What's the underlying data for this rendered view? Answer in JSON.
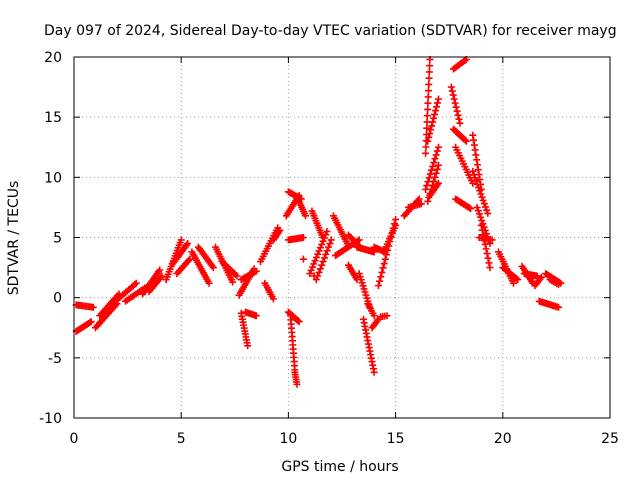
{
  "chart_data": {
    "type": "scatter",
    "title": "Day 097 of 2024, Sidereal Day-to-day VTEC variation (SDTVAR) for receiver mayg",
    "xlabel": "GPS time / hours",
    "ylabel": "SDTVAR / TECUs",
    "xlim": [
      0,
      25
    ],
    "ylim": [
      -10,
      20
    ],
    "xticks": [
      0,
      5,
      10,
      15,
      20,
      25
    ],
    "yticks": [
      -10,
      -5,
      0,
      5,
      10,
      15,
      20
    ],
    "grid": true,
    "marker": "+",
    "color": "#ff0000",
    "series": [
      {
        "name": "SDTVAR",
        "arcs": [
          {
            "t0": 0.1,
            "v0": -0.6,
            "t1": 0.9,
            "v1": -0.8,
            "n": 12
          },
          {
            "t0": 0.1,
            "v0": -2.8,
            "t1": 0.8,
            "v1": -2.0,
            "n": 12
          },
          {
            "t0": 1.0,
            "v0": -2.5,
            "t1": 2.0,
            "v1": -0.5,
            "n": 16
          },
          {
            "t0": 1.2,
            "v0": -1.5,
            "t1": 2.1,
            "v1": 0.3,
            "n": 14
          },
          {
            "t0": 2.0,
            "v0": -0.2,
            "t1": 2.9,
            "v1": 1.2,
            "n": 14
          },
          {
            "t0": 2.4,
            "v0": -0.3,
            "t1": 3.3,
            "v1": 0.8,
            "n": 12
          },
          {
            "t0": 3.2,
            "v0": 0.3,
            "t1": 4.0,
            "v1": 2.3,
            "n": 14
          },
          {
            "t0": 3.5,
            "v0": 0.5,
            "t1": 4.1,
            "v1": 1.8,
            "n": 10
          },
          {
            "t0": 4.3,
            "v0": 1.5,
            "t1": 5.0,
            "v1": 4.8,
            "n": 16
          },
          {
            "t0": 4.6,
            "v0": 2.8,
            "t1": 5.3,
            "v1": 4.5,
            "n": 14
          },
          {
            "t0": 4.8,
            "v0": 2.0,
            "t1": 5.4,
            "v1": 3.2,
            "n": 10
          },
          {
            "t0": 5.5,
            "v0": 3.8,
            "t1": 6.3,
            "v1": 1.2,
            "n": 16
          },
          {
            "t0": 5.8,
            "v0": 4.2,
            "t1": 6.5,
            "v1": 2.5,
            "n": 14
          },
          {
            "t0": 6.6,
            "v0": 4.2,
            "t1": 7.4,
            "v1": 1.3,
            "n": 16
          },
          {
            "t0": 6.9,
            "v0": 3.0,
            "t1": 7.6,
            "v1": 1.8,
            "n": 10
          },
          {
            "t0": 7.7,
            "v0": 0.2,
            "t1": 8.4,
            "v1": 2.4,
            "n": 14
          },
          {
            "t0": 7.8,
            "v0": 1.5,
            "t1": 8.5,
            "v1": 2.2,
            "n": 10
          },
          {
            "t0": 7.8,
            "v0": -1.3,
            "t1": 8.1,
            "v1": -4.0,
            "n": 12
          },
          {
            "t0": 8.0,
            "v0": -1.2,
            "t1": 8.5,
            "v1": -1.5,
            "n": 8
          },
          {
            "t0": 8.7,
            "v0": 3.0,
            "t1": 9.5,
            "v1": 5.8,
            "n": 14
          },
          {
            "t0": 8.9,
            "v0": 1.2,
            "t1": 9.3,
            "v1": -0.1,
            "n": 8
          },
          {
            "t0": 9.3,
            "v0": 4.8,
            "t1": 9.6,
            "v1": 5.6,
            "n": 8
          },
          {
            "t0": 9.9,
            "v0": 6.8,
            "t1": 10.5,
            "v1": 8.5,
            "n": 12
          },
          {
            "t0": 10.0,
            "v0": 8.8,
            "t1": 10.6,
            "v1": 8.2,
            "n": 10
          },
          {
            "t0": 10.4,
            "v0": 8.4,
            "t1": 10.8,
            "v1": 6.8,
            "n": 10
          },
          {
            "t0": 10.0,
            "v0": 4.8,
            "t1": 10.7,
            "v1": 5.0,
            "n": 12
          },
          {
            "t0": 10.0,
            "v0": -1.2,
            "t1": 10.5,
            "v1": -2.0,
            "n": 10
          },
          {
            "t0": 10.1,
            "v0": -1.5,
            "t1": 10.3,
            "v1": -6.0,
            "n": 14
          },
          {
            "t0": 10.3,
            "v0": -6.2,
            "t1": 10.4,
            "v1": -7.2,
            "n": 6
          },
          {
            "t0": 10.7,
            "v0": 3.2,
            "t1": 10.7,
            "v1": 3.2,
            "n": 1
          },
          {
            "t0": 11.1,
            "v0": 7.2,
            "t1": 11.6,
            "v1": 5.0,
            "n": 12
          },
          {
            "t0": 11.0,
            "v0": 2.0,
            "t1": 11.8,
            "v1": 5.5,
            "n": 14
          },
          {
            "t0": 11.3,
            "v0": 1.5,
            "t1": 12.0,
            "v1": 4.8,
            "n": 12
          },
          {
            "t0": 11.2,
            "v0": 1.8,
            "t1": 11.2,
            "v1": 1.8,
            "n": 1
          },
          {
            "t0": 12.1,
            "v0": 6.8,
            "t1": 12.8,
            "v1": 4.3,
            "n": 14
          },
          {
            "t0": 12.2,
            "v0": 3.5,
            "t1": 13.3,
            "v1": 4.8,
            "n": 16
          },
          {
            "t0": 12.8,
            "v0": 5.2,
            "t1": 13.3,
            "v1": 4.3,
            "n": 8
          },
          {
            "t0": 12.8,
            "v0": 2.7,
            "t1": 13.2,
            "v1": 1.5,
            "n": 8
          },
          {
            "t0": 13.2,
            "v0": 4.2,
            "t1": 14.0,
            "v1": 3.8,
            "n": 14
          },
          {
            "t0": 13.3,
            "v0": 2.0,
            "t1": 13.8,
            "v1": -0.8,
            "n": 12
          },
          {
            "t0": 13.5,
            "v0": -1.8,
            "t1": 14.0,
            "v1": -6.2,
            "n": 16
          },
          {
            "t0": 13.9,
            "v0": -2.5,
            "t1": 14.2,
            "v1": -1.8,
            "n": 6
          },
          {
            "t0": 13.7,
            "v0": -0.5,
            "t1": 14.0,
            "v1": -1.5,
            "n": 6
          },
          {
            "t0": 14.3,
            "v0": -1.6,
            "t1": 14.6,
            "v1": -1.5,
            "n": 4
          },
          {
            "t0": 14.0,
            "v0": 4.2,
            "t1": 14.5,
            "v1": 3.8,
            "n": 8
          },
          {
            "t0": 14.2,
            "v0": 1.0,
            "t1": 15.0,
            "v1": 6.5,
            "n": 16
          },
          {
            "t0": 14.5,
            "v0": 4.0,
            "t1": 15.0,
            "v1": 6.0,
            "n": 10
          },
          {
            "t0": 15.4,
            "v0": 6.8,
            "t1": 16.1,
            "v1": 8.2,
            "n": 12
          },
          {
            "t0": 15.6,
            "v0": 7.5,
            "t1": 16.2,
            "v1": 7.8,
            "n": 8
          },
          {
            "t0": 16.4,
            "v0": 12.0,
            "t1": 16.6,
            "v1": 19.8,
            "n": 16
          },
          {
            "t0": 16.5,
            "v0": 13.0,
            "t1": 17.0,
            "v1": 16.5,
            "n": 12
          },
          {
            "t0": 16.4,
            "v0": 9.0,
            "t1": 17.0,
            "v1": 12.5,
            "n": 12
          },
          {
            "t0": 16.5,
            "v0": 8.0,
            "t1": 17.0,
            "v1": 11.0,
            "n": 10
          },
          {
            "t0": 16.6,
            "v0": 8.5,
            "t1": 17.0,
            "v1": 9.5,
            "n": 8
          },
          {
            "t0": 17.7,
            "v0": 19.0,
            "t1": 18.3,
            "v1": 19.8,
            "n": 10
          },
          {
            "t0": 17.6,
            "v0": 17.5,
            "t1": 18.0,
            "v1": 14.5,
            "n": 10
          },
          {
            "t0": 17.7,
            "v0": 14.0,
            "t1": 18.3,
            "v1": 13.0,
            "n": 12
          },
          {
            "t0": 17.8,
            "v0": 12.5,
            "t1": 18.6,
            "v1": 9.5,
            "n": 14
          },
          {
            "t0": 17.8,
            "v0": 8.2,
            "t1": 18.5,
            "v1": 7.4,
            "n": 12
          },
          {
            "t0": 18.6,
            "v0": 13.5,
            "t1": 19.0,
            "v1": 9.0,
            "n": 12
          },
          {
            "t0": 18.6,
            "v0": 10.5,
            "t1": 19.3,
            "v1": 7.0,
            "n": 14
          },
          {
            "t0": 18.8,
            "v0": 7.5,
            "t1": 19.4,
            "v1": 4.5,
            "n": 12
          },
          {
            "t0": 18.9,
            "v0": 5.0,
            "t1": 19.5,
            "v1": 4.8,
            "n": 8
          },
          {
            "t0": 19.0,
            "v0": 6.0,
            "t1": 19.4,
            "v1": 2.5,
            "n": 10
          },
          {
            "t0": 19.8,
            "v0": 3.8,
            "t1": 20.5,
            "v1": 1.2,
            "n": 14
          },
          {
            "t0": 20.0,
            "v0": 2.5,
            "t1": 20.7,
            "v1": 1.5,
            "n": 12
          },
          {
            "t0": 20.9,
            "v0": 2.6,
            "t1": 21.4,
            "v1": 1.2,
            "n": 10
          },
          {
            "t0": 21.0,
            "v0": 2.0,
            "t1": 21.6,
            "v1": 1.8,
            "n": 10
          },
          {
            "t0": 21.5,
            "v0": 1.0,
            "t1": 21.8,
            "v1": 1.7,
            "n": 6
          },
          {
            "t0": 21.7,
            "v0": -0.3,
            "t1": 22.6,
            "v1": -0.8,
            "n": 14
          },
          {
            "t0": 22.0,
            "v0": 2.0,
            "t1": 22.7,
            "v1": 1.2,
            "n": 12
          },
          {
            "t0": 22.2,
            "v0": 1.5,
            "t1": 22.6,
            "v1": 1.1,
            "n": 6
          }
        ]
      }
    ]
  }
}
